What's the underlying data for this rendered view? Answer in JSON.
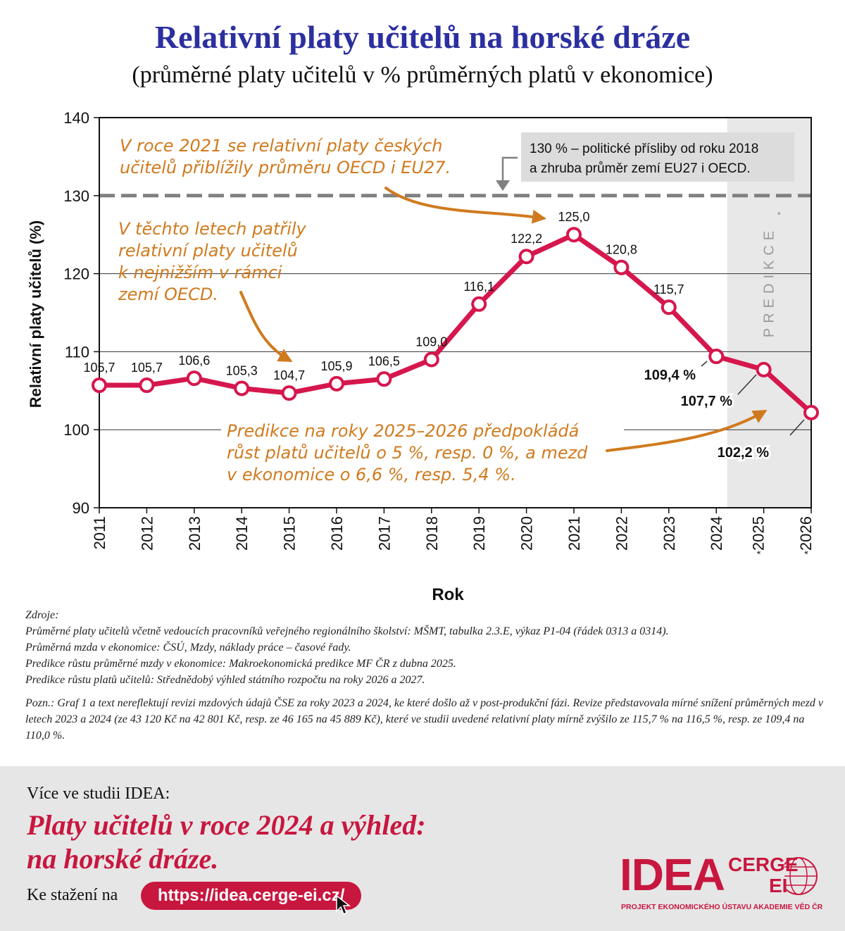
{
  "title": "Relativní platy učitelů na horské dráze",
  "subtitle": "(průměrné platy učitelů v % průměrných platů v ekonomice)",
  "chart_data": {
    "type": "line",
    "categories": [
      "2011",
      "2012",
      "2013",
      "2014",
      "2015",
      "2016",
      "2017",
      "2018",
      "2019",
      "2020",
      "2021",
      "2022",
      "2023",
      "2024",
      "2025*",
      "2026*"
    ],
    "series": [
      {
        "values": [
          105.7,
          105.7,
          106.6,
          105.3,
          104.7,
          105.9,
          106.5,
          109.0,
          116.1,
          122.2,
          125.0,
          120.8,
          115.7,
          109.4,
          107.7,
          102.2
        ],
        "color": "#d5174d"
      }
    ],
    "data_labels": [
      "105,7",
      "105,7",
      "106,6",
      "105,3",
      "104,7",
      "105,9",
      "106,5",
      "109,0",
      "116,1",
      "122,2",
      "125,0",
      "120,8",
      "115,7",
      "109,4 %",
      "107,7 %",
      "102,2 %"
    ],
    "bold_labels_from_index": 13,
    "xlabel": "Rok",
    "ylabel": "Relativní platy učitelů (%)",
    "ylim": [
      90,
      140
    ],
    "yticks": [
      90,
      100,
      110,
      120,
      130,
      140
    ],
    "grid": true,
    "reference_line": {
      "value": 130,
      "label_lines": [
        "130 % – politické přísliby od roku 2018",
        "a zhruba průměr zemí EU27 i OECD."
      ]
    },
    "prediction_band": {
      "from": "2025*",
      "label": "PREDIKCE",
      "mark": "*"
    },
    "annotations": [
      {
        "id": "a2021",
        "lines": [
          "V roce 2021 se relativní platy českých",
          "učitelů přiblížily průměru OECD i EU27."
        ]
      },
      {
        "id": "alow",
        "lines": [
          "V těchto letech patřily",
          "relativní platy učitelů",
          "k nejnižším v rámci",
          "zemí OECD."
        ]
      },
      {
        "id": "apred",
        "lines": [
          "Predikce na roky 2025–2026 předpokládá",
          "růst platů učitelů o 5 %, resp. 0 %, a mezd",
          "v ekonomice o 6,6 %, resp. 5,4 %."
        ]
      }
    ],
    "colors": {
      "line": "#d5174d",
      "annotation": "#d07a1e",
      "reference": "#808080",
      "band": "#e8e8e8",
      "title": "#2b2f9f"
    }
  },
  "sources": {
    "heading": "Zdroje:",
    "lines": [
      "Průměrné platy učitelů včetně vedoucích pracovníků veřejného regionálního školství: MŠMT, tabulka 2.3.E, výkaz P1-04 (řádek 0313 a 0314).",
      "Průměrná mzda v ekonomice: ČSÚ, Mzdy, náklady práce – časové řady.",
      "Predikce růstu průměrné mzdy v ekonomice: Makroekonomická predikce MF ČR z dubna 2025.",
      "Predikce růstu platů učitelů: Střednědobý výhled státního rozpočtu na roky 2026 a 2027."
    ],
    "note": "Pozn.: Graf 1 a text nereflektují revizi mzdových údajů ČSE za roky 2023 a 2024, ke které došlo až v post-produkční fázi. Revize představovala mírné snížení průměrných mezd v letech 2023 a 2024 (ze 43 120 Kč na 42 801 Kč, resp. ze 46 165 na 45 889 Kč), které ve studii uvedené relativní platy mírně zvýšilo ze 115,7 % na 116,5 %, resp. ze 109,4 na 110,0 %."
  },
  "footer": {
    "more": "Více ve studii IDEA:",
    "study_line1": "Platy učitelů v roce 2024 a výhled:",
    "study_line2": "na horské dráze.",
    "download": "Ke stažení na",
    "url": "https://idea.cerge-ei.cz/",
    "logo_idea": "IDEA",
    "logo_cerge": "CERGE",
    "logo_ei": "EI",
    "logo_sub": "PROJEKT EKONOMICKÉHO ÚSTAVU AKADEMIE VĚD ČR",
    "brand_color": "#c8173f",
    "background": "#e6e6e6"
  }
}
